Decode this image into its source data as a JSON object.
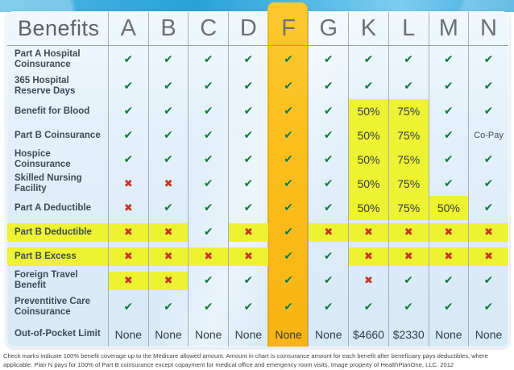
{
  "table": {
    "header": {
      "benefits_label": "Benefits",
      "plans": [
        "A",
        "B",
        "C",
        "D",
        "F",
        "G",
        "K",
        "L",
        "M",
        "N"
      ],
      "highlighted_plan": "F"
    },
    "rows": [
      {
        "label": "Part A Hospital Coinsurance",
        "label_hl": false,
        "cells": [
          "check",
          "check",
          "check",
          "check",
          "check",
          "check",
          "check",
          "check",
          "check",
          "check"
        ],
        "hl": [
          "",
          "",
          "",
          "",
          "",
          "",
          "",
          "",
          "",
          ""
        ]
      },
      {
        "label": "365 Hospital Reserve Days",
        "label_hl": false,
        "cells": [
          "check",
          "check",
          "check",
          "check",
          "check",
          "check",
          "check",
          "check",
          "check",
          "check"
        ],
        "hl": [
          "",
          "",
          "",
          "",
          "",
          "",
          "",
          "",
          "",
          ""
        ]
      },
      {
        "label": "Benefit for Blood",
        "label_hl": false,
        "cells": [
          "check",
          "check",
          "check",
          "check",
          "check",
          "check",
          "50%",
          "75%",
          "check",
          "check"
        ],
        "hl": [
          "",
          "",
          "",
          "",
          "",
          "",
          "full",
          "full",
          "",
          ""
        ]
      },
      {
        "label": "Part B Coinsurance",
        "label_hl": false,
        "cells": [
          "check",
          "check",
          "check",
          "check",
          "check",
          "check",
          "50%",
          "75%",
          "check",
          "Co-Pay"
        ],
        "hl": [
          "",
          "",
          "",
          "",
          "",
          "",
          "full",
          "full",
          "",
          ""
        ]
      },
      {
        "label": "Hospice Coinsurance",
        "label_hl": false,
        "cells": [
          "check",
          "check",
          "check",
          "check",
          "check",
          "check",
          "50%",
          "75%",
          "check",
          "check"
        ],
        "hl": [
          "",
          "",
          "",
          "",
          "",
          "",
          "full",
          "full",
          "",
          ""
        ]
      },
      {
        "label": "Skilled Nursing Facility",
        "label_hl": false,
        "cells": [
          "cross",
          "cross",
          "check",
          "check",
          "check",
          "check",
          "50%",
          "75%",
          "check",
          "check"
        ],
        "hl": [
          "",
          "",
          "",
          "",
          "",
          "",
          "full",
          "full",
          "",
          ""
        ]
      },
      {
        "label": "Part A Deductible",
        "label_hl": false,
        "cells": [
          "cross",
          "check",
          "check",
          "check",
          "check",
          "check",
          "50%",
          "75%",
          "50%",
          "check"
        ],
        "hl": [
          "",
          "",
          "",
          "",
          "",
          "",
          "full",
          "full",
          "full",
          ""
        ]
      },
      {
        "label": "Part B Deductible",
        "label_hl": true,
        "cells": [
          "cross",
          "cross",
          "check",
          "cross",
          "check",
          "cross",
          "cross",
          "cross",
          "cross",
          "cross"
        ],
        "hl": [
          "band",
          "band",
          "",
          "band",
          "",
          "band",
          "band",
          "band",
          "band",
          "band"
        ]
      },
      {
        "label": "Part B Excess",
        "label_hl": true,
        "cells": [
          "cross",
          "cross",
          "cross",
          "cross",
          "check",
          "check",
          "cross",
          "cross",
          "cross",
          "cross"
        ],
        "hl": [
          "band",
          "band",
          "band",
          "band",
          "",
          "",
          "band",
          "band",
          "band",
          "band"
        ]
      },
      {
        "label": "Foreign Travel Benefit",
        "label_hl": false,
        "cells": [
          "cross",
          "cross",
          "check",
          "check",
          "check",
          "check",
          "cross",
          "check",
          "check",
          "check"
        ],
        "hl": [
          "band",
          "band",
          "",
          "",
          "",
          "",
          "",
          "",
          "",
          ""
        ]
      },
      {
        "label": "Preventitive Care Coinsurance",
        "label_hl": false,
        "cells": [
          "check",
          "check",
          "check",
          "check",
          "check",
          "check",
          "check",
          "check",
          "check",
          "check"
        ],
        "hl": [
          "",
          "",
          "",
          "",
          "",
          "",
          "",
          "",
          "",
          ""
        ]
      },
      {
        "label": "Out-of-Pocket Limit",
        "label_hl": false,
        "cells": [
          "None",
          "None",
          "None",
          "None",
          "None",
          "None",
          "$4660",
          "$2330",
          "None",
          "None"
        ],
        "hl": [
          "",
          "",
          "",
          "",
          "",
          "",
          "",
          "",
          "",
          ""
        ]
      }
    ]
  },
  "icons": {
    "check": "✔",
    "cross": "✖"
  },
  "colors": {
    "check_green": "#117a3a",
    "cross_red": "#c6331f",
    "highlight_yellow": "#edf233",
    "plan_f_orange": "#fbbe1c",
    "banner_blue": "#29a2d8",
    "table_blue": "#e4f1fa"
  },
  "footer": {
    "line1": "Check marks indicate 100% benefit coverage up to the Medicare allowed amount. Amount in chart is coinsurance amount for each benefit after beneficiary pays deductibles, where",
    "line2": "applicable. Plan N pays for 100% of Part B coinsurance except copayment for medical office and emergency room visits. Image property of HealthPlanOne, LLC. 2012"
  },
  "chart_data": {
    "type": "table",
    "title": "Medicare Supplement Plan Benefits Comparison",
    "columns": [
      "Benefits",
      "A",
      "B",
      "C",
      "D",
      "F",
      "G",
      "K",
      "L",
      "M",
      "N"
    ],
    "rows": [
      [
        "Part A Hospital Coinsurance",
        "✔",
        "✔",
        "✔",
        "✔",
        "✔",
        "✔",
        "✔",
        "✔",
        "✔",
        "✔"
      ],
      [
        "365 Hospital Reserve Days",
        "✔",
        "✔",
        "✔",
        "✔",
        "✔",
        "✔",
        "✔",
        "✔",
        "✔",
        "✔"
      ],
      [
        "Benefit for Blood",
        "✔",
        "✔",
        "✔",
        "✔",
        "✔",
        "✔",
        "50%",
        "75%",
        "✔",
        "✔"
      ],
      [
        "Part B Coinsurance",
        "✔",
        "✔",
        "✔",
        "✔",
        "✔",
        "✔",
        "50%",
        "75%",
        "✔",
        "Co-Pay"
      ],
      [
        "Hospice Coinsurance",
        "✔",
        "✔",
        "✔",
        "✔",
        "✔",
        "✔",
        "50%",
        "75%",
        "✔",
        "✔"
      ],
      [
        "Skilled Nursing Facility",
        "✖",
        "✖",
        "✔",
        "✔",
        "✔",
        "✔",
        "50%",
        "75%",
        "✔",
        "✔"
      ],
      [
        "Part A Deductible",
        "✖",
        "✔",
        "✔",
        "✔",
        "✔",
        "✔",
        "50%",
        "75%",
        "50%",
        "✔"
      ],
      [
        "Part B Deductible",
        "✖",
        "✖",
        "✔",
        "✖",
        "✔",
        "✖",
        "✖",
        "✖",
        "✖",
        "✖"
      ],
      [
        "Part B Excess",
        "✖",
        "✖",
        "✖",
        "✖",
        "✔",
        "✔",
        "✖",
        "✖",
        "✖",
        "✖"
      ],
      [
        "Foreign Travel Benefit",
        "✖",
        "✖",
        "✔",
        "✔",
        "✔",
        "✔",
        "✖",
        "✔",
        "✔",
        "✔"
      ],
      [
        "Preventitive Care Coinsurance",
        "✔",
        "✔",
        "✔",
        "✔",
        "✔",
        "✔",
        "✔",
        "✔",
        "✔",
        "✔"
      ],
      [
        "Out-of-Pocket Limit",
        "None",
        "None",
        "None",
        "None",
        "None",
        "None",
        "$4660",
        "$2330",
        "None",
        "None"
      ]
    ],
    "layout_hints": {
      "highlighted_column": "F",
      "yellow_highlighted_labels": [
        "Part B Deductible",
        "Part B Excess"
      ],
      "grid": "vertical lines only, header underline"
    }
  }
}
